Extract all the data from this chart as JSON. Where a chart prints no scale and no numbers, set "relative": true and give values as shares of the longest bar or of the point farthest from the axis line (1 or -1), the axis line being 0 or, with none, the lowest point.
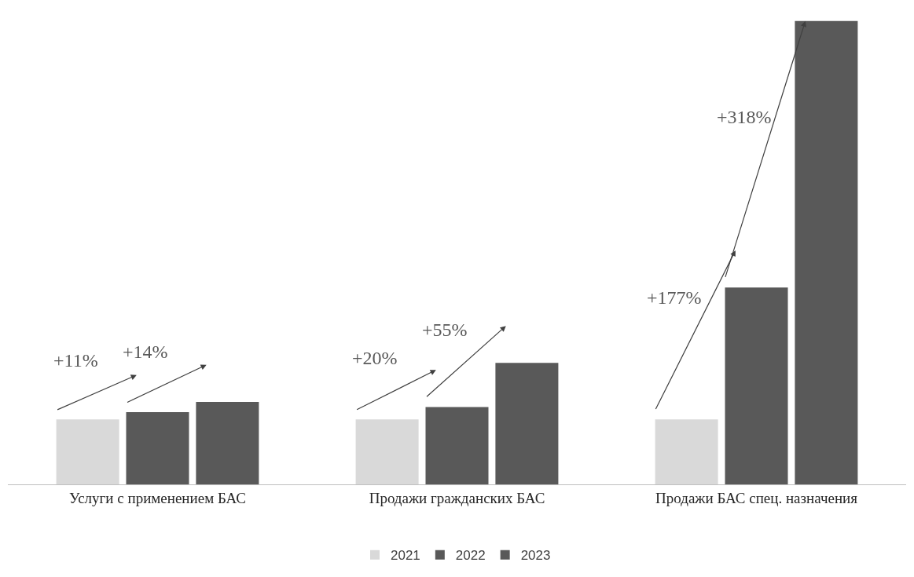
{
  "chart_data": {
    "type": "bar",
    "relative": true,
    "categories": [
      "Услуги с применением БАС",
      "Продажи гражданских БАС",
      "Продажи БАС спец. назначения"
    ],
    "series": [
      {
        "name": "2021",
        "color": "#d9d9d9",
        "values": [
          0.14,
          0.14,
          0.14
        ]
      },
      {
        "name": "2022",
        "color": "#595959",
        "values": [
          0.156,
          0.167,
          0.425
        ]
      },
      {
        "name": "2023",
        "color": "#595959",
        "values": [
          0.178,
          0.262,
          1.0
        ]
      }
    ],
    "annotations": [
      "+11%",
      "+14%",
      "+20%",
      "+55%",
      "+177%",
      "+318%"
    ],
    "legend": "bottom"
  }
}
